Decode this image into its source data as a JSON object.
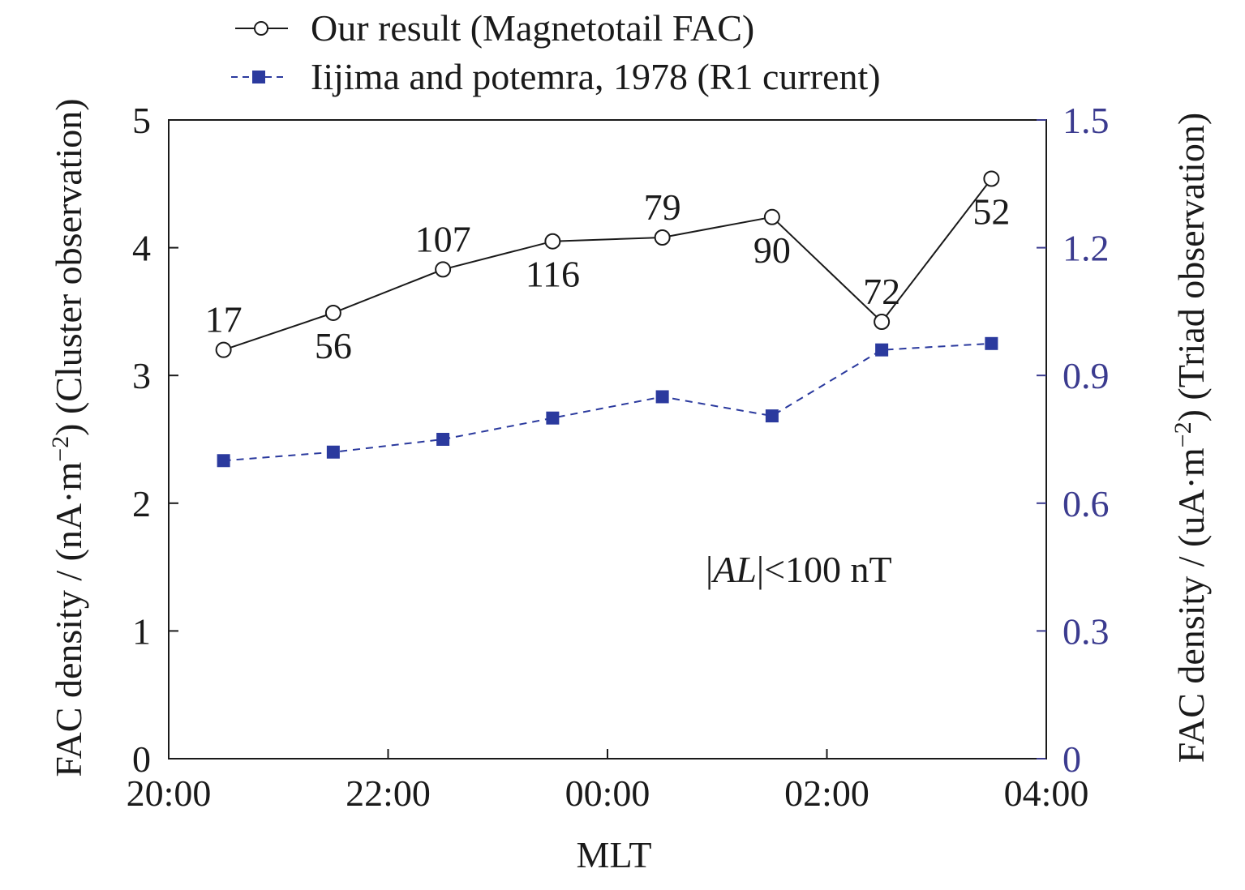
{
  "chart_data": {
    "type": "line",
    "x_axis": {
      "label": "MLT",
      "tick_values": [
        20,
        22,
        24,
        26,
        28
      ],
      "tick_labels": [
        "20:00",
        "22:00",
        "00:00",
        "02:00",
        "04:00"
      ],
      "range": [
        20,
        28
      ]
    },
    "y_axis_left": {
      "label_parts": [
        "FAC density / (nA·m",
        "−2",
        ") (Cluster observation)"
      ],
      "ticks": [
        0,
        1,
        2,
        3,
        4,
        5
      ],
      "tick_labels": [
        "0",
        "1",
        "2",
        "3",
        "4",
        "5"
      ],
      "range": [
        0,
        5
      ]
    },
    "y_axis_right": {
      "label_parts": [
        "FAC density / (uA·m",
        "−2",
        ") (Triad observation)"
      ],
      "ticks": [
        0,
        0.3,
        0.6,
        0.9,
        1.2,
        1.5
      ],
      "tick_labels": [
        "0",
        "0.3",
        "0.6",
        "0.9",
        "1.2",
        "1.5"
      ],
      "range": [
        0,
        1.5
      ],
      "color": "#3b3b8f"
    },
    "series": [
      {
        "name": "Our result (Magnetotail FAC)",
        "axis": "left",
        "marker": "open-circle",
        "line_style": "solid",
        "color": "#1a1a1a",
        "x": [
          20.5,
          21.5,
          22.5,
          23.5,
          24.5,
          25.5,
          26.5,
          27.5
        ],
        "values": [
          3.2,
          3.49,
          3.83,
          4.05,
          4.08,
          4.24,
          3.42,
          4.54
        ],
        "point_labels": [
          "17",
          "56",
          "107",
          "116",
          "79",
          "90",
          "72",
          "52"
        ],
        "label_positions": [
          "above",
          "below",
          "above",
          "below",
          "above",
          "below",
          "above",
          "below"
        ]
      },
      {
        "name": "Iijima and potemra, 1978 (R1 current)",
        "axis": "right",
        "marker": "filled-square",
        "line_style": "dashed",
        "color": "#2b3a9e",
        "x": [
          20.5,
          21.5,
          22.5,
          23.5,
          24.5,
          25.5,
          26.5,
          27.5
        ],
        "values": [
          0.7,
          0.72,
          0.75,
          0.8,
          0.85,
          0.805,
          0.96,
          0.975
        ]
      }
    ],
    "annotation": {
      "parts": [
        "|",
        "AL",
        "|<100 nT"
      ]
    },
    "legend_placement": "top-center",
    "grid": false
  }
}
